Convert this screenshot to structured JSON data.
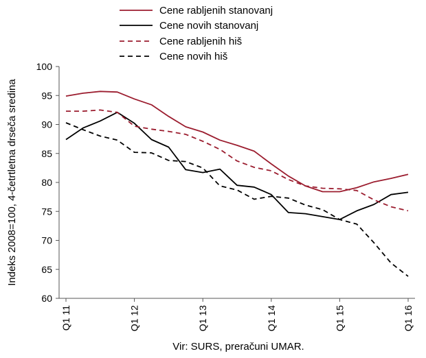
{
  "chart_data": {
    "type": "line",
    "ylabel": "Indeks 2008=100, 4-četrtletna drseča sredina",
    "ylim": [
      60,
      100
    ],
    "yticks": [
      60,
      65,
      70,
      75,
      80,
      85,
      90,
      95,
      100
    ],
    "x_tick_labels": [
      "Q1 11",
      "Q1 12",
      "Q1 13",
      "Q1 14",
      "Q1 15",
      "Q1 16"
    ],
    "x_tick_positions": [
      0,
      4,
      8,
      12,
      16,
      20
    ],
    "grid": false,
    "legend_position": "top-center",
    "source": "Vir: SURS, preračuni UMAR.",
    "series": [
      {
        "name": "Cene rabljenih stanovanj",
        "color": "#9B1C2E",
        "dash": "solid",
        "values": [
          94.9,
          95.4,
          95.7,
          95.6,
          94.4,
          93.4,
          91.4,
          89.6,
          88.7,
          87.3,
          86.4,
          85.4,
          83.2,
          81.1,
          79.4,
          78.4,
          78.4,
          79.1,
          80.1,
          80.7,
          81.4
        ]
      },
      {
        "name": "Cene novih stanovanj",
        "color": "#000000",
        "dash": "solid",
        "values": [
          87.4,
          89.4,
          90.6,
          92.1,
          90.2,
          87.4,
          86.1,
          82.2,
          81.7,
          82.3,
          79.5,
          79.2,
          77.9,
          74.8,
          74.6,
          74.1,
          73.6,
          75.1,
          76.2,
          77.9,
          78.3
        ]
      },
      {
        "name": "Cene rabljenih hiš",
        "color": "#9B1C2E",
        "dash": "dashed",
        "values": [
          92.3,
          92.3,
          92.5,
          92.1,
          89.7,
          89.2,
          88.8,
          88.3,
          87.1,
          85.7,
          83.7,
          82.6,
          82.0,
          80.5,
          79.4,
          79.0,
          78.9,
          78.6,
          77.0,
          75.8,
          75.1
        ]
      },
      {
        "name": "Cene novih hiš",
        "color": "#000000",
        "dash": "dashed",
        "values": [
          90.3,
          89.1,
          88.0,
          87.3,
          85.2,
          85.1,
          83.8,
          83.6,
          82.5,
          79.4,
          78.7,
          77.1,
          77.6,
          77.3,
          76.1,
          75.3,
          73.6,
          72.8,
          69.6,
          66.1,
          63.8
        ]
      }
    ]
  }
}
